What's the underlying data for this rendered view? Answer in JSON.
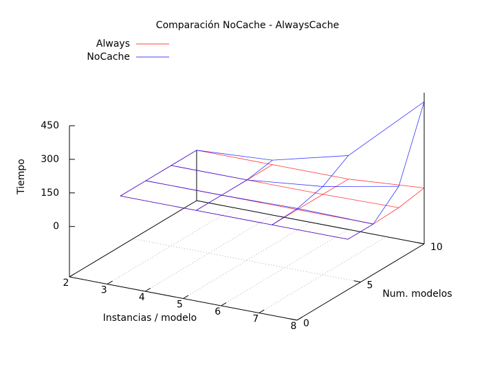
{
  "chart_data": {
    "type": "surface",
    "title": "Comparación NoCache - AlwaysCache",
    "xlabel": "Instancias / modelo",
    "ylabel": "Num. modelos",
    "zlabel": "Tiempo",
    "x": [
      2,
      4,
      6,
      8
    ],
    "y": [
      4,
      6,
      8,
      10
    ],
    "series": [
      {
        "name": "Always",
        "color": "#ff0000",
        "values": [
          [
            0,
            0,
            0,
            0
          ],
          [
            0,
            0,
            0,
            0
          ],
          [
            0,
            0,
            0,
            5
          ],
          [
            0,
            0,
            0,
            25
          ]
        ]
      },
      {
        "name": "NoCache",
        "color": "#0000ff",
        "values": [
          [
            0,
            0,
            0,
            0
          ],
          [
            0,
            0,
            5,
            0
          ],
          [
            0,
            0,
            35,
            100
          ],
          [
            0,
            20,
            105,
            410
          ]
        ]
      }
    ],
    "xlim": [
      2,
      8
    ],
    "ylim": [
      0,
      10
    ],
    "zlim": [
      -225,
      450
    ],
    "xticks": [
      2,
      3,
      4,
      5,
      6,
      7,
      8
    ],
    "yticks": [
      0,
      5,
      10
    ],
    "zticks": [
      0,
      150,
      300,
      450
    ],
    "grid": true,
    "legend": "top-left"
  }
}
